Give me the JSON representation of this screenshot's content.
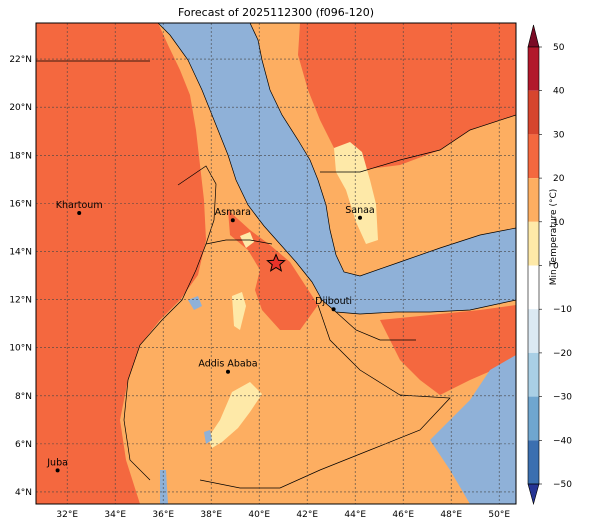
{
  "title": "Forecast of 2025112300 (f096-120)",
  "colorbar": {
    "label": "Min Temperature (°C)",
    "ticks": [
      "50",
      "40",
      "30",
      "20",
      "10",
      "0",
      "−10",
      "−20",
      "−30",
      "−40",
      "−50"
    ],
    "colors": [
      "#7a0b25",
      "#b2182b",
      "#d6452e",
      "#f4683f",
      "#fdae61",
      "#fee9a8",
      "#ffffff",
      "#dbe9f3",
      "#a9cfe5",
      "#6fa6cf",
      "#3b6fb0",
      "#253494"
    ]
  },
  "axes": {
    "lat_labels": [
      "22°N",
      "20°N",
      "18°N",
      "16°N",
      "14°N",
      "12°N",
      "10°N",
      "8°N",
      "6°N",
      "4°N"
    ],
    "lon_labels": [
      "32°E",
      "34°E",
      "36°E",
      "38°E",
      "40°E",
      "42°E",
      "44°E",
      "46°E",
      "48°E",
      "50°E"
    ]
  },
  "cities": [
    {
      "name": "Khartoum",
      "lon": 32.5,
      "lat": 15.6
    },
    {
      "name": "Asmara",
      "lon": 38.9,
      "lat": 15.3
    },
    {
      "name": "Sanaa",
      "lon": 44.2,
      "lat": 15.4
    },
    {
      "name": "Djibouti",
      "lon": 43.1,
      "lat": 11.6
    },
    {
      "name": "Addis Ababa",
      "lon": 38.7,
      "lat": 9.0
    },
    {
      "name": "Juba",
      "lon": 31.6,
      "lat": 4.9
    }
  ],
  "forecast_point": {
    "lon": 40.7,
    "lat": 13.5
  }
}
